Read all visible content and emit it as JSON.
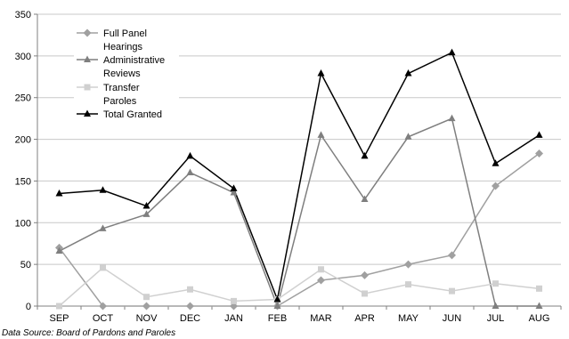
{
  "chart_data": {
    "type": "line",
    "categories": [
      "SEP",
      "OCT",
      "NOV",
      "DEC",
      "JAN",
      "FEB",
      "MAR",
      "APR",
      "MAY",
      "JUN",
      "JUL",
      "AUG"
    ],
    "ylim": [
      0,
      350
    ],
    "yticks": [
      0,
      50,
      100,
      150,
      200,
      250,
      300,
      350
    ],
    "grid": true,
    "legend_placement": "top-left",
    "series": [
      {
        "name": "Full Panel Hearings",
        "name_lines": [
          "Full Panel",
          "Hearings"
        ],
        "marker": "diamond",
        "color": "#a0a0a0",
        "values": [
          70,
          0,
          0,
          0,
          0,
          0,
          31,
          37,
          50,
          61,
          144,
          183
        ]
      },
      {
        "name": "Administrative Reviews",
        "name_lines": [
          "Administrative",
          "Reviews"
        ],
        "marker": "triangle",
        "color": "#7f7f7f",
        "values": [
          66,
          93,
          110,
          160,
          136,
          0,
          205,
          128,
          203,
          225,
          0,
          0
        ]
      },
      {
        "name": "Transfer Paroles",
        "name_lines": [
          "Transfer",
          "Paroles"
        ],
        "marker": "square",
        "color": "#d0d0d0",
        "values": [
          0,
          46,
          11,
          20,
          6,
          8,
          44,
          15,
          26,
          18,
          27,
          21
        ]
      },
      {
        "name": "Total Granted",
        "name_lines": [
          "Total Granted"
        ],
        "marker": "triangle",
        "color": "#000000",
        "values": [
          135,
          139,
          120,
          180,
          141,
          8,
          279,
          180,
          279,
          304,
          171,
          205
        ]
      }
    ],
    "source_note": "Data Source: Board of Pardons and Paroles"
  }
}
